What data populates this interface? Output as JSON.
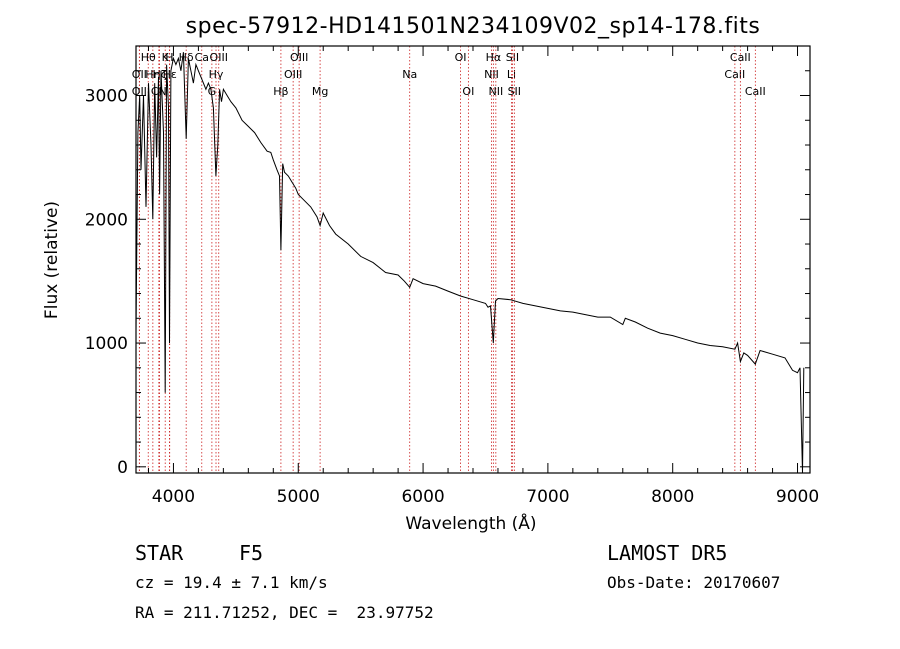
{
  "chart_data": {
    "type": "line",
    "title": "spec-57912-HD141501N234109V02_sp14-178.fits",
    "xlabel": "Wavelength (Å)",
    "ylabel": "Flux (relative)",
    "xlim": [
      3700,
      9100
    ],
    "ylim": [
      -50,
      3400
    ],
    "xticks": [
      4000,
      5000,
      6000,
      7000,
      8000,
      9000
    ],
    "yticks": [
      0,
      1000,
      2000,
      3000
    ],
    "grid": false,
    "series": [
      {
        "x": [
          3700,
          3715,
          3730,
          3740,
          3760,
          3780,
          3800,
          3820,
          3835,
          3850,
          3865,
          3880,
          3889,
          3900,
          3920,
          3934,
          3945,
          3960,
          3968,
          3980,
          4000,
          4020,
          4040,
          4060,
          4080,
          4102,
          4120,
          4140,
          4160,
          4180,
          4200,
          4220,
          4240,
          4260,
          4280,
          4300,
          4320,
          4340,
          4355,
          4370,
          4385,
          4400,
          4430,
          4460,
          4500,
          4550,
          4600,
          4650,
          4700,
          4750,
          4780,
          4800,
          4830,
          4850,
          4861,
          4875,
          4890,
          4920,
          4950,
          4980,
          5000,
          5050,
          5100,
          5150,
          5175,
          5200,
          5250,
          5300,
          5400,
          5500,
          5600,
          5700,
          5800,
          5850,
          5893,
          5920,
          6000,
          6100,
          6200,
          6300,
          6400,
          6500,
          6520,
          6540,
          6563,
          6580,
          6600,
          6700,
          6800,
          6900,
          7000,
          7100,
          7200,
          7300,
          7400,
          7500,
          7600,
          7620,
          7700,
          7800,
          7900,
          8000,
          8100,
          8200,
          8300,
          8400,
          8498,
          8520,
          8542,
          8570,
          8600,
          8662,
          8700,
          8800,
          8900,
          8960,
          9000,
          9020,
          9040,
          9050
        ],
        "values": [
          1100,
          2700,
          3000,
          2400,
          3000,
          2100,
          3100,
          2600,
          2000,
          3100,
          2500,
          3150,
          2200,
          3200,
          2700,
          600,
          3250,
          2900,
          1000,
          3200,
          3300,
          3250,
          3300,
          3200,
          3350,
          2650,
          3300,
          3200,
          3100,
          3250,
          3200,
          3150,
          3100,
          3050,
          3100,
          3050,
          2900,
          2350,
          2600,
          3050,
          2950,
          3050,
          3000,
          2950,
          2900,
          2800,
          2750,
          2700,
          2620,
          2550,
          2540,
          2480,
          2400,
          2350,
          1750,
          2450,
          2380,
          2350,
          2300,
          2250,
          2200,
          2150,
          2100,
          2020,
          1950,
          2050,
          1950,
          1880,
          1800,
          1700,
          1650,
          1570,
          1550,
          1500,
          1450,
          1520,
          1480,
          1460,
          1420,
          1380,
          1350,
          1320,
          1290,
          1300,
          1000,
          1340,
          1360,
          1350,
          1320,
          1300,
          1280,
          1260,
          1250,
          1230,
          1210,
          1210,
          1150,
          1200,
          1170,
          1120,
          1080,
          1060,
          1030,
          1000,
          980,
          970,
          950,
          1000,
          850,
          920,
          900,
          830,
          940,
          910,
          880,
          780,
          760,
          800,
          -50,
          800
        ]
      }
    ],
    "lines": [
      {
        "name": "Hδ",
        "wavelength": 4102,
        "row": 0
      },
      {
        "name": "K",
        "wavelength": 3934,
        "row": 0
      },
      {
        "name": "H",
        "wavelength": 3968,
        "row": 0
      },
      {
        "name": "G",
        "wavelength": 4308,
        "row": 2
      },
      {
        "name": "Hγ",
        "wavelength": 4341,
        "row": 1
      },
      {
        "name": "OIII",
        "wavelength": 4363,
        "row": 0
      },
      {
        "name": "Hβ",
        "wavelength": 4861,
        "row": 2
      },
      {
        "name": "OIII",
        "wavelength": 4959,
        "row": 1
      },
      {
        "name": "OIII",
        "wavelength": 5007,
        "row": 0
      },
      {
        "name": "Mg",
        "wavelength": 5175,
        "row": 2
      },
      {
        "name": "Na",
        "wavelength": 5893,
        "row": 1
      },
      {
        "name": "OI",
        "wavelength": 6300,
        "row": 0
      },
      {
        "name": "OI",
        "wavelength": 6363,
        "row": 2
      },
      {
        "name": "NII",
        "wavelength": 6548,
        "row": 1
      },
      {
        "name": "Hα",
        "wavelength": 6563,
        "row": 0
      },
      {
        "name": "NII",
        "wavelength": 6583,
        "row": 2
      },
      {
        "name": "Li",
        "wavelength": 6708,
        "row": 1
      },
      {
        "name": "SII",
        "wavelength": 6716,
        "row": 0
      },
      {
        "name": "SII",
        "wavelength": 6731,
        "row": 2
      },
      {
        "name": "CaII",
        "wavelength": 8498,
        "row": 1
      },
      {
        "name": "CaII",
        "wavelength": 8542,
        "row": 0
      },
      {
        "name": "CaII",
        "wavelength": 8662,
        "row": 2
      },
      {
        "name": "OII",
        "wavelength": 3727,
        "row": 1
      },
      {
        "name": "Hη",
        "wavelength": 3835,
        "row": 1
      },
      {
        "name": "Hζ",
        "wavelength": 3889,
        "row": 1
      },
      {
        "name": "Hε",
        "wavelength": 3970,
        "row": 1
      },
      {
        "name": "CN",
        "wavelength": 3883,
        "row": 2
      },
      {
        "name": "Hθ",
        "wavelength": 3798,
        "row": 0
      },
      {
        "name": "OII",
        "wavelength": 3727,
        "row": 2
      },
      {
        "name": "Ca",
        "wavelength": 4227,
        "row": 0
      }
    ],
    "line_color": "#cc2222"
  },
  "info": {
    "class_label": "STAR",
    "subclass": "F5",
    "survey": "LAMOST DR5",
    "cz": "cz = 19.4 ± 7.1 km/s",
    "obs_date": "Obs-Date: 20170607",
    "radec": "RA = 211.71252, DEC =  23.97752"
  }
}
